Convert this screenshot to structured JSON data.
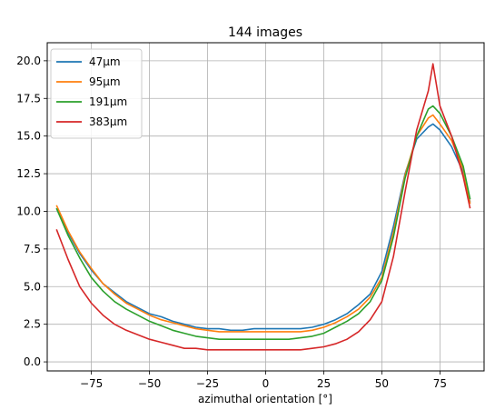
{
  "chart_data": {
    "type": "line",
    "title": "144 images",
    "xlabel": "azimuthal orientation [°]",
    "ylabel": "",
    "xlim": [
      -94,
      94
    ],
    "ylim": [
      -0.6,
      21.2
    ],
    "xticks": [
      -75,
      -50,
      -25,
      0,
      25,
      50,
      75
    ],
    "xtick_labels": [
      "−75",
      "−50",
      "−25",
      "0",
      "25",
      "50",
      "75"
    ],
    "yticks": [
      0.0,
      2.5,
      5.0,
      7.5,
      10.0,
      12.5,
      15.0,
      17.5,
      20.0
    ],
    "ytick_labels": [
      "0.0",
      "2.5",
      "5.0",
      "7.5",
      "10.0",
      "12.5",
      "15.0",
      "17.5",
      "20.0"
    ],
    "grid": true,
    "legend_position": "top-left",
    "colors": {
      "47um": "#1f77b4",
      "95um": "#ff7f0e",
      "191um": "#2ca02c",
      "383um": "#d62728"
    },
    "x": [
      -90,
      -85,
      -80,
      -75,
      -70,
      -65,
      -60,
      -55,
      -50,
      -45,
      -40,
      -35,
      -30,
      -25,
      -20,
      -15,
      -10,
      -5,
      0,
      5,
      10,
      15,
      20,
      25,
      30,
      35,
      40,
      45,
      50,
      55,
      60,
      65,
      70,
      72,
      75,
      80,
      85,
      88
    ],
    "series": [
      {
        "name": "47μm",
        "key": "47um",
        "values": [
          10.2,
          8.6,
          7.2,
          6.1,
          5.2,
          4.6,
          4.0,
          3.6,
          3.2,
          3.0,
          2.7,
          2.5,
          2.3,
          2.2,
          2.2,
          2.1,
          2.1,
          2.2,
          2.2,
          2.2,
          2.2,
          2.2,
          2.3,
          2.5,
          2.8,
          3.2,
          3.8,
          4.5,
          6.0,
          9.0,
          12.5,
          14.8,
          15.6,
          15.8,
          15.4,
          14.3,
          12.6,
          10.6
        ]
      },
      {
        "name": "95μm",
        "key": "95um",
        "values": [
          10.4,
          8.7,
          7.3,
          6.2,
          5.2,
          4.5,
          3.9,
          3.5,
          3.1,
          2.8,
          2.6,
          2.4,
          2.2,
          2.1,
          2.0,
          2.0,
          2.0,
          2.0,
          2.0,
          2.0,
          2.0,
          2.0,
          2.1,
          2.3,
          2.6,
          3.0,
          3.5,
          4.3,
          5.6,
          8.6,
          12.4,
          15.0,
          16.2,
          16.4,
          15.8,
          14.7,
          12.8,
          10.5
        ]
      },
      {
        "name": "191μm",
        "key": "191um",
        "values": [
          10.2,
          8.4,
          6.9,
          5.6,
          4.7,
          4.0,
          3.5,
          3.1,
          2.7,
          2.4,
          2.1,
          1.9,
          1.7,
          1.6,
          1.5,
          1.5,
          1.5,
          1.5,
          1.5,
          1.5,
          1.5,
          1.6,
          1.7,
          1.9,
          2.3,
          2.7,
          3.2,
          4.0,
          5.4,
          8.3,
          12.2,
          15.0,
          16.8,
          17.0,
          16.5,
          15.0,
          13.0,
          10.8
        ]
      },
      {
        "name": "383μm",
        "key": "383um",
        "values": [
          8.8,
          6.8,
          5.0,
          3.9,
          3.1,
          2.5,
          2.1,
          1.8,
          1.5,
          1.3,
          1.1,
          0.9,
          0.9,
          0.8,
          0.8,
          0.8,
          0.8,
          0.8,
          0.8,
          0.8,
          0.8,
          0.8,
          0.9,
          1.0,
          1.2,
          1.5,
          2.0,
          2.8,
          4.0,
          7.0,
          11.3,
          15.4,
          18.0,
          19.8,
          17.0,
          15.0,
          12.3,
          10.2
        ]
      }
    ]
  }
}
